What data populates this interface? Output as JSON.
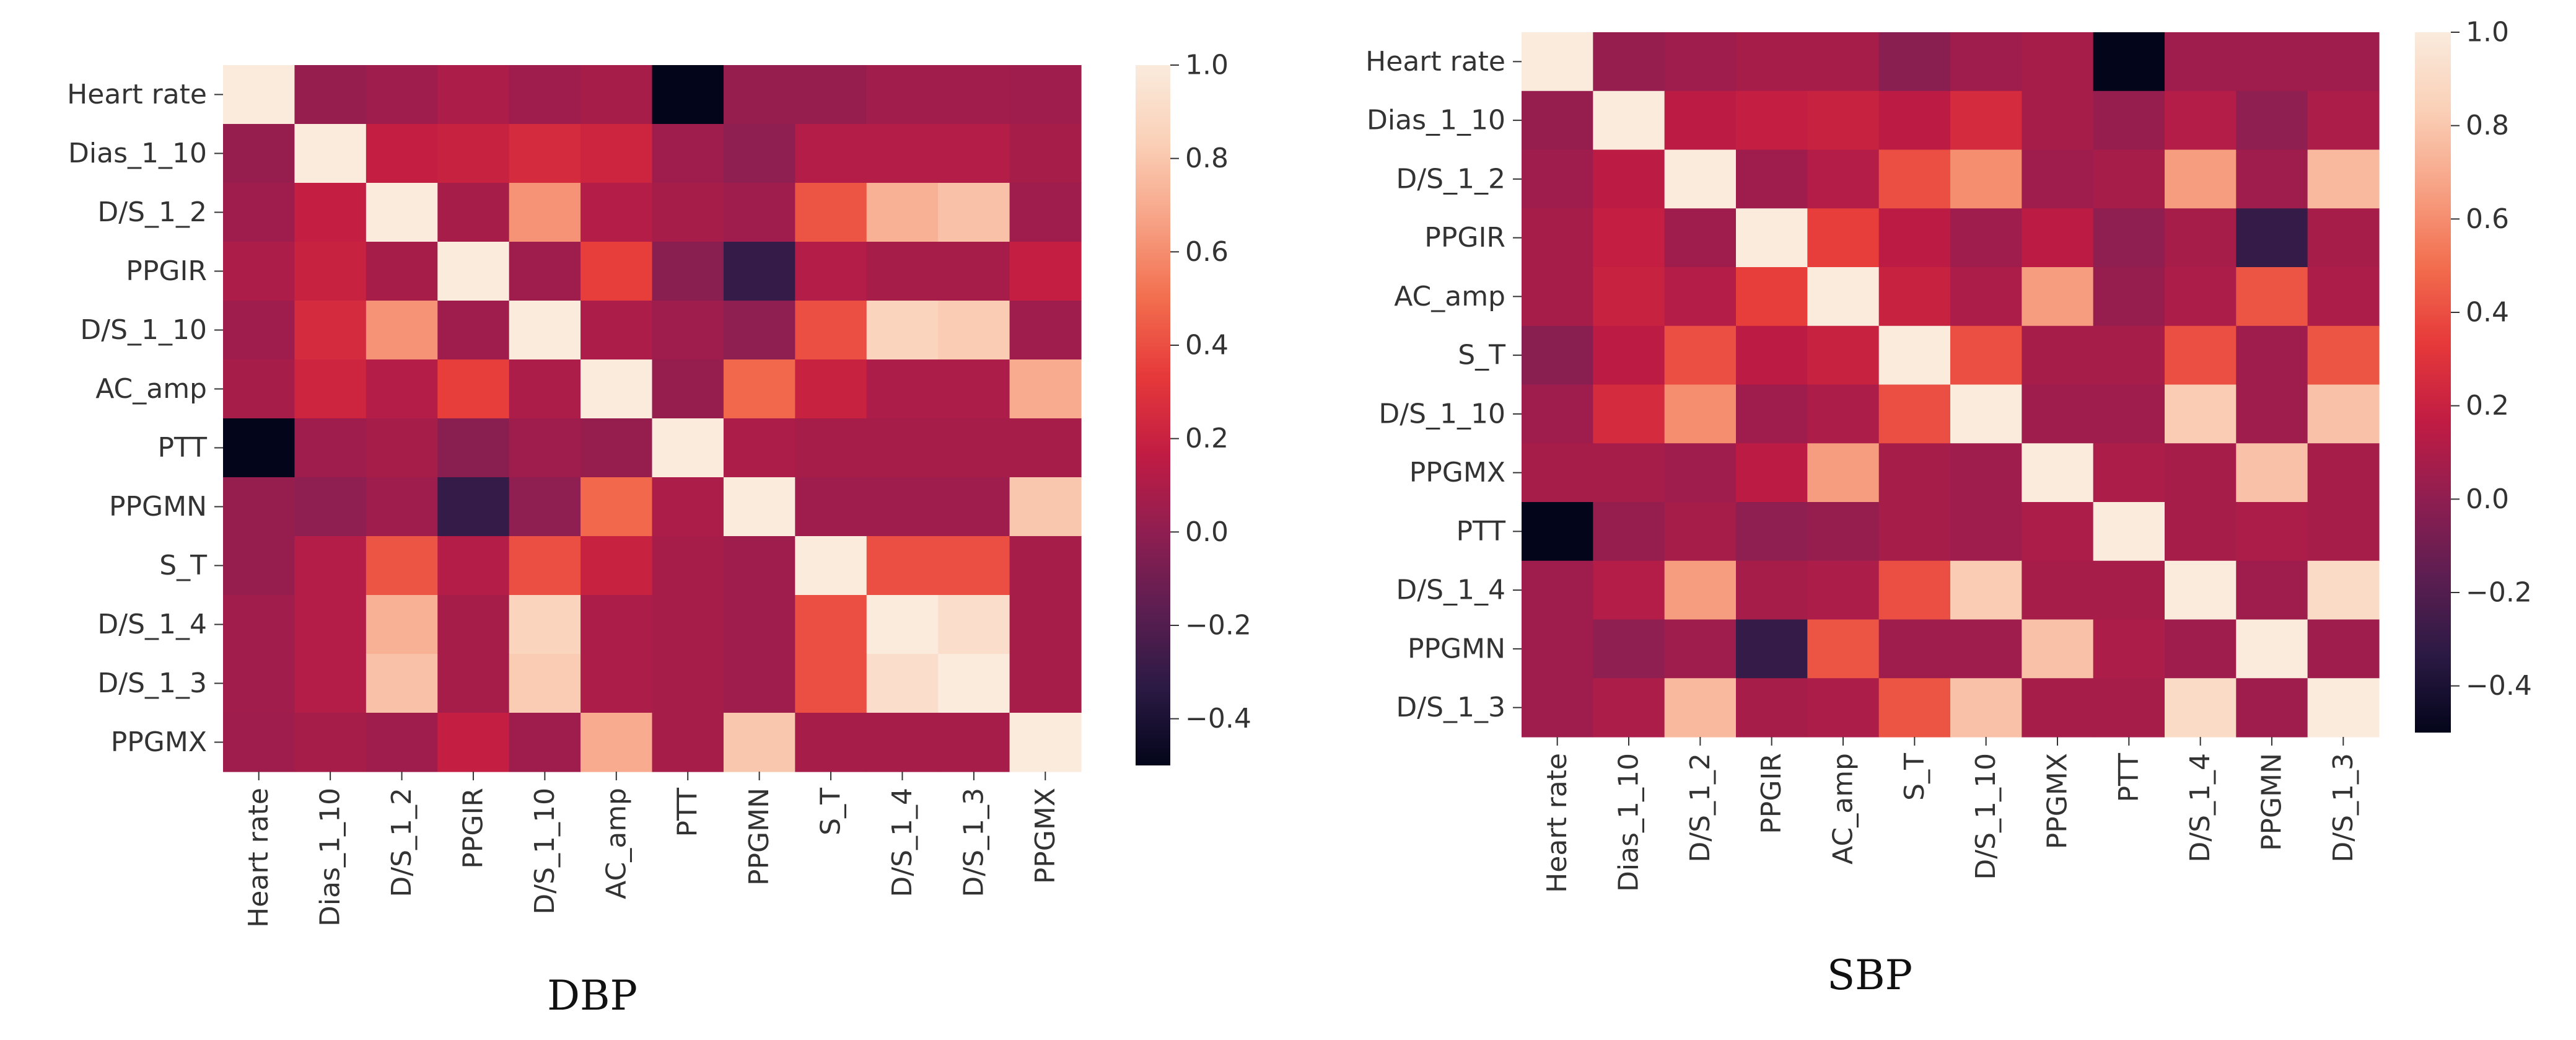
{
  "chart_data": [
    {
      "type": "heatmap",
      "title": "DBP",
      "rows": [
        "Heart rate",
        "Dias_1_10",
        "D/S_1_2",
        "PPGIR",
        "D/S_1_10",
        "AC_amp",
        "PTT",
        "PPGMN",
        "S_T",
        "D/S_1_4",
        "D/S_1_3",
        "PPGMX"
      ],
      "cols": [
        "Heart rate",
        "Dias_1_10",
        "D/S_1_2",
        "PPGIR",
        "D/S_1_10",
        "AC_amp",
        "PTT",
        "PPGMN",
        "S_T",
        "D/S_1_4",
        "D/S_1_3",
        "PPGMX"
      ],
      "values": [
        [
          1.0,
          0.02,
          0.05,
          0.1,
          0.05,
          0.08,
          -0.5,
          0.02,
          0.02,
          0.06,
          0.06,
          0.05
        ],
        [
          0.02,
          1.0,
          0.18,
          0.2,
          0.25,
          0.22,
          0.05,
          0.0,
          0.12,
          0.12,
          0.12,
          0.08
        ],
        [
          0.05,
          0.18,
          1.0,
          0.08,
          0.62,
          0.12,
          0.08,
          0.05,
          0.42,
          0.72,
          0.78,
          0.05
        ],
        [
          0.1,
          0.2,
          0.08,
          1.0,
          0.05,
          0.35,
          -0.02,
          -0.3,
          0.12,
          0.08,
          0.08,
          0.18
        ],
        [
          0.05,
          0.25,
          0.62,
          0.05,
          1.0,
          0.1,
          0.05,
          0.0,
          0.4,
          0.86,
          0.82,
          0.05
        ],
        [
          0.08,
          0.22,
          0.12,
          0.35,
          0.1,
          1.0,
          0.02,
          0.48,
          0.2,
          0.1,
          0.1,
          0.7
        ],
        [
          -0.5,
          0.05,
          0.08,
          -0.02,
          0.05,
          0.02,
          1.0,
          0.1,
          0.08,
          0.08,
          0.08,
          0.08
        ],
        [
          0.02,
          0.0,
          0.05,
          -0.3,
          0.0,
          0.48,
          0.1,
          1.0,
          0.05,
          0.05,
          0.05,
          0.8
        ],
        [
          0.02,
          0.12,
          0.42,
          0.12,
          0.4,
          0.2,
          0.08,
          0.05,
          1.0,
          0.4,
          0.4,
          0.08
        ],
        [
          0.06,
          0.12,
          0.72,
          0.08,
          0.86,
          0.1,
          0.08,
          0.05,
          0.4,
          1.0,
          0.92,
          0.08
        ],
        [
          0.06,
          0.12,
          0.78,
          0.08,
          0.82,
          0.1,
          0.08,
          0.05,
          0.4,
          0.92,
          1.0,
          0.08
        ],
        [
          0.05,
          0.08,
          0.05,
          0.18,
          0.05,
          0.7,
          0.08,
          0.8,
          0.08,
          0.08,
          0.08,
          1.0
        ]
      ],
      "vmin": -0.5,
      "vmax": 1.0,
      "colorbar_ticks": [
        "1.0",
        "0.8",
        "0.6",
        "0.4",
        "0.2",
        "0.0",
        "−0.2",
        "−0.4"
      ],
      "colorbar_tick_values": [
        1.0,
        0.8,
        0.6,
        0.4,
        0.2,
        0.0,
        -0.2,
        -0.4
      ],
      "xlabel": "",
      "ylabel": ""
    },
    {
      "type": "heatmap",
      "title": "SBP",
      "rows": [
        "Heart rate",
        "Dias_1_10",
        "D/S_1_2",
        "PPGIR",
        "AC_amp",
        "S_T",
        "D/S_1_10",
        "PPGMX",
        "PTT",
        "D/S_1_4",
        "PPGMN",
        "D/S_1_3"
      ],
      "cols": [
        "Heart rate",
        "Dias_1_10",
        "D/S_1_2",
        "PPGIR",
        "AC_amp",
        "S_T",
        "D/S_1_10",
        "PPGMX",
        "PTT",
        "D/S_1_4",
        "PPGMN",
        "D/S_1_3"
      ],
      "values": [
        [
          1.0,
          0.02,
          0.05,
          0.08,
          0.08,
          -0.02,
          0.05,
          0.08,
          -0.5,
          0.05,
          0.05,
          0.05
        ],
        [
          0.02,
          1.0,
          0.15,
          0.18,
          0.2,
          0.15,
          0.25,
          0.08,
          0.02,
          0.12,
          0.0,
          0.1
        ],
        [
          0.05,
          0.15,
          1.0,
          0.05,
          0.12,
          0.4,
          0.6,
          0.05,
          0.08,
          0.65,
          0.05,
          0.75
        ],
        [
          0.08,
          0.18,
          0.05,
          1.0,
          0.35,
          0.15,
          0.05,
          0.15,
          0.0,
          0.08,
          -0.3,
          0.08
        ],
        [
          0.08,
          0.2,
          0.12,
          0.35,
          1.0,
          0.2,
          0.1,
          0.65,
          0.02,
          0.1,
          0.42,
          0.1
        ],
        [
          -0.02,
          0.15,
          0.4,
          0.15,
          0.2,
          1.0,
          0.4,
          0.08,
          0.08,
          0.4,
          0.05,
          0.42
        ],
        [
          0.05,
          0.25,
          0.6,
          0.05,
          0.1,
          0.4,
          1.0,
          0.05,
          0.05,
          0.82,
          0.05,
          0.78
        ],
        [
          0.08,
          0.08,
          0.05,
          0.15,
          0.65,
          0.08,
          0.05,
          1.0,
          0.1,
          0.08,
          0.78,
          0.08
        ],
        [
          -0.5,
          0.02,
          0.08,
          0.0,
          0.02,
          0.08,
          0.05,
          0.1,
          1.0,
          0.08,
          0.1,
          0.08
        ],
        [
          0.05,
          0.12,
          0.65,
          0.08,
          0.1,
          0.4,
          0.82,
          0.08,
          0.08,
          1.0,
          0.05,
          0.9
        ],
        [
          0.05,
          0.0,
          0.05,
          -0.3,
          0.42,
          0.05,
          0.05,
          0.78,
          0.1,
          0.05,
          1.0,
          0.05
        ],
        [
          0.05,
          0.1,
          0.75,
          0.08,
          0.1,
          0.42,
          0.78,
          0.08,
          0.08,
          0.9,
          0.05,
          1.0
        ]
      ],
      "vmin": -0.5,
      "vmax": 1.0,
      "colorbar_ticks": [
        "1.0",
        "0.8",
        "0.6",
        "0.4",
        "0.2",
        "0.0",
        "−0.2",
        "−0.4"
      ],
      "colorbar_tick_values": [
        1.0,
        0.8,
        0.6,
        0.4,
        0.2,
        0.0,
        -0.2,
        -0.4
      ],
      "xlabel": "",
      "ylabel": ""
    }
  ],
  "colormap": [
    "#03051a",
    "#2b1a44",
    "#5c1e51",
    "#8f1e51",
    "#c11c43",
    "#e6393a",
    "#f26e4e",
    "#f7a285",
    "#fad0b7",
    "#faebdd"
  ],
  "captions": {
    "left": "DBP",
    "right": "SBP"
  }
}
